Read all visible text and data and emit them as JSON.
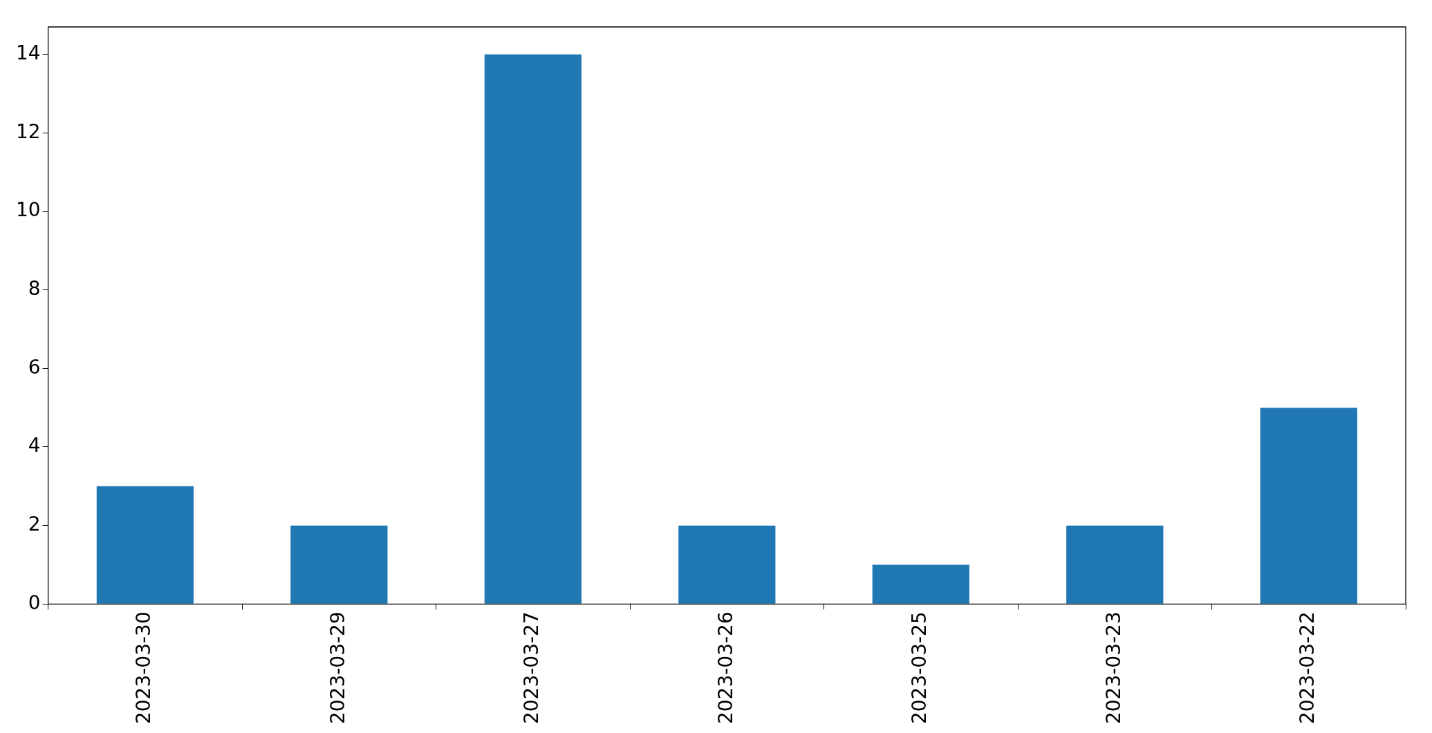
{
  "chart_data": {
    "type": "bar",
    "categories": [
      "2023-03-30",
      "2023-03-29",
      "2023-03-27",
      "2023-03-26",
      "2023-03-25",
      "2023-03-23",
      "2023-03-22"
    ],
    "values": [
      3,
      2,
      14,
      2,
      1,
      2,
      5
    ],
    "color": "#1f77b4",
    "ylim": [
      0,
      14.7
    ],
    "yticks": [
      0,
      2,
      4,
      6,
      8,
      10,
      12,
      14
    ],
    "grid": false,
    "legend": false
  }
}
